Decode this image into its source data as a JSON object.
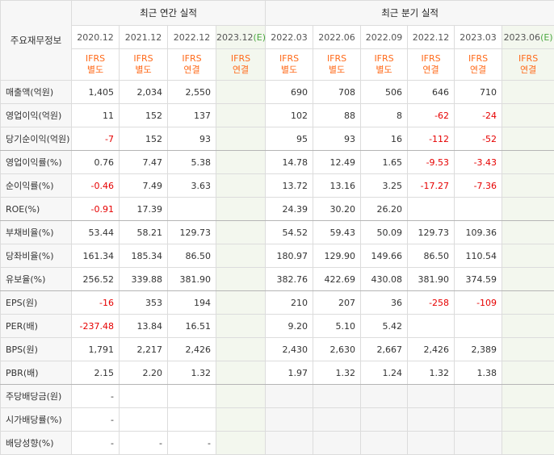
{
  "header": {
    "row_title": "주요재무정보",
    "annual_group": "최근 연간 실적",
    "quarter_group": "최근 분기 실적"
  },
  "annual_periods": [
    {
      "label": "2020.12",
      "std1": "IFRS",
      "std2": "별도"
    },
    {
      "label": "2021.12",
      "std1": "IFRS",
      "std2": "별도"
    },
    {
      "label": "2022.12",
      "std1": "IFRS",
      "std2": "연결"
    },
    {
      "label": "2023.12",
      "est": "(E)",
      "std1": "IFRS",
      "std2": "연결"
    }
  ],
  "quarter_periods": [
    {
      "label": "2022.03",
      "std1": "IFRS",
      "std2": "별도"
    },
    {
      "label": "2022.06",
      "std1": "IFRS",
      "std2": "별도"
    },
    {
      "label": "2022.09",
      "std1": "IFRS",
      "std2": "별도"
    },
    {
      "label": "2022.12",
      "std1": "IFRS",
      "std2": "연결"
    },
    {
      "label": "2023.03",
      "std1": "IFRS",
      "std2": "연결"
    },
    {
      "label": "2023.06",
      "est": "(E)",
      "std1": "IFRS",
      "std2": "연결"
    }
  ],
  "rows": [
    {
      "label": "매출액(억원)",
      "values": [
        "1,405",
        "2,034",
        "2,550",
        "",
        "690",
        "708",
        "506",
        "646",
        "710",
        ""
      ]
    },
    {
      "label": "영업이익(억원)",
      "values": [
        "11",
        "152",
        "137",
        "",
        "102",
        "88",
        "8",
        "-62",
        "-24",
        ""
      ]
    },
    {
      "label": "당기순이익(억원)",
      "values": [
        "-7",
        "152",
        "93",
        "",
        "95",
        "93",
        "16",
        "-112",
        "-52",
        ""
      ]
    },
    {
      "label": "영업이익률(%)",
      "values": [
        "0.76",
        "7.47",
        "5.38",
        "",
        "14.78",
        "12.49",
        "1.65",
        "-9.53",
        "-3.43",
        ""
      ]
    },
    {
      "label": "순이익률(%)",
      "values": [
        "-0.46",
        "7.49",
        "3.63",
        "",
        "13.72",
        "13.16",
        "3.25",
        "-17.27",
        "-7.36",
        ""
      ]
    },
    {
      "label": "ROE(%)",
      "values": [
        "-0.91",
        "17.39",
        "",
        "",
        "24.39",
        "30.20",
        "26.20",
        "",
        "",
        ""
      ]
    },
    {
      "label": "부채비율(%)",
      "values": [
        "53.44",
        "58.21",
        "129.73",
        "",
        "54.52",
        "59.43",
        "50.09",
        "129.73",
        "109.36",
        ""
      ]
    },
    {
      "label": "당좌비율(%)",
      "values": [
        "161.34",
        "185.34",
        "86.50",
        "",
        "180.97",
        "129.90",
        "149.66",
        "86.50",
        "110.54",
        ""
      ]
    },
    {
      "label": "유보율(%)",
      "values": [
        "256.52",
        "339.88",
        "381.90",
        "",
        "382.76",
        "422.69",
        "430.08",
        "381.90",
        "374.59",
        ""
      ]
    },
    {
      "label": "EPS(원)",
      "values": [
        "-16",
        "353",
        "194",
        "",
        "210",
        "207",
        "36",
        "-258",
        "-109",
        ""
      ]
    },
    {
      "label": "PER(배)",
      "values": [
        "-237.48",
        "13.84",
        "16.51",
        "",
        "9.20",
        "5.10",
        "5.42",
        "",
        "",
        ""
      ]
    },
    {
      "label": "BPS(원)",
      "values": [
        "1,791",
        "2,217",
        "2,426",
        "",
        "2,430",
        "2,630",
        "2,667",
        "2,426",
        "2,389",
        ""
      ]
    },
    {
      "label": "PBR(배)",
      "values": [
        "2.15",
        "2.20",
        "1.32",
        "",
        "1.97",
        "1.32",
        "1.24",
        "1.32",
        "1.38",
        ""
      ]
    },
    {
      "label": "주당배당금(원)",
      "values": [
        "-",
        "",
        "",
        "",
        "",
        "",
        "",
        "",
        "",
        ""
      ]
    },
    {
      "label": "시가배당률(%)",
      "values": [
        "-",
        "",
        "",
        "",
        "",
        "",
        "",
        "",
        "",
        ""
      ]
    },
    {
      "label": "배당성향(%)",
      "values": [
        "-",
        "-",
        "-",
        "",
        "",
        "",
        "",
        "",
        "",
        ""
      ]
    }
  ],
  "colors": {
    "negative": "#e60000",
    "standard": "#ff6a1a",
    "estimate_bg": "#f3f7ee"
  }
}
